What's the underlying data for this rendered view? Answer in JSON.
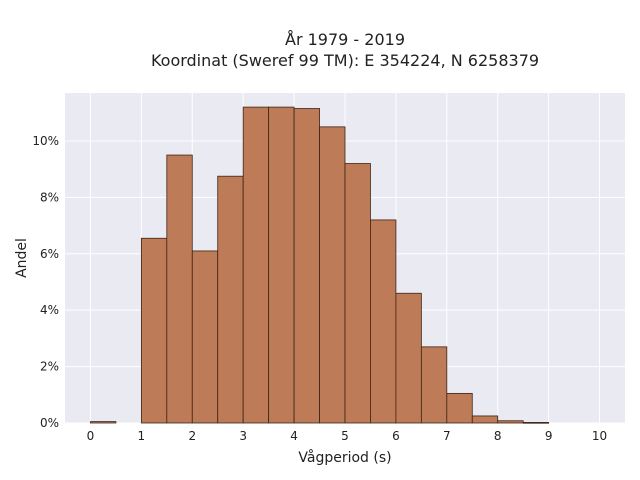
{
  "chart_data": {
    "type": "bar",
    "title_line1": "År 1979 - 2019",
    "title_line2": "Koordinat (Sweref 99 TM): E 354224, N 6258379",
    "xlabel": "Vågperiod (s)",
    "ylabel": "Andel",
    "xlim": [
      -0.5,
      10.5
    ],
    "ylim": [
      0,
      0.117
    ],
    "bin_width": 0.5,
    "bin_starts": [
      0,
      0.5,
      1,
      1.5,
      2,
      2.5,
      3,
      3.5,
      4,
      4.5,
      5,
      5.5,
      6,
      6.5,
      7,
      7.5,
      8,
      8.5,
      9,
      9.5
    ],
    "values": [
      0.0005,
      0,
      0.0655,
      0.095,
      0.061,
      0.0875,
      0.112,
      0.112,
      0.1115,
      0.105,
      0.092,
      0.072,
      0.046,
      0.027,
      0.0105,
      0.0025,
      0.0008,
      0.0002,
      0,
      0
    ],
    "x_ticks": [
      0,
      1,
      2,
      3,
      4,
      5,
      6,
      7,
      8,
      9,
      10
    ],
    "x_tick_labels": [
      "0",
      "1",
      "2",
      "3",
      "4",
      "5",
      "6",
      "7",
      "8",
      "9",
      "10"
    ],
    "y_ticks": [
      0,
      0.02,
      0.04,
      0.06,
      0.08,
      0.1
    ],
    "y_tick_labels": [
      "0%",
      "2%",
      "4%",
      "6%",
      "8%",
      "10%"
    ],
    "grid": true,
    "colors": {
      "bar_fill": "#bd7b57",
      "bar_stroke": "#3d2418",
      "plot_background": "#eaeaf2",
      "grid": "#ffffff"
    }
  }
}
